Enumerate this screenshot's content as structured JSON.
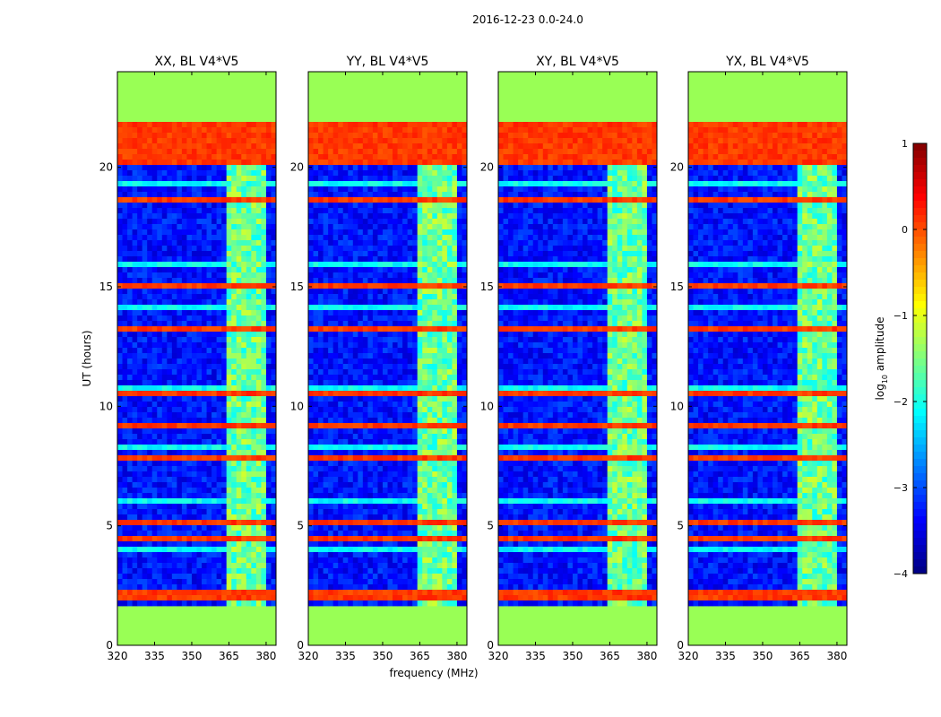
{
  "figure_title": "2016-12-23 0.0-24.0",
  "chart_data": {
    "type": "heatmap",
    "suptitle": "2016-12-23 0.0-24.0",
    "xlabel": "frequency (MHz)",
    "ylabel": "UT (hours)",
    "xlim": [
      320,
      384
    ],
    "ylim": [
      0,
      24
    ],
    "xticks": [
      320,
      335,
      350,
      365,
      380
    ],
    "yticks": [
      0,
      5,
      10,
      15,
      20
    ],
    "data_time_range_hours": [
      1.65,
      21.9
    ],
    "panels": [
      {
        "title": "XX, BL V4*V5"
      },
      {
        "title": "YY, BL V4*V5"
      },
      {
        "title": "XY, BL V4*V5"
      },
      {
        "title": "YX, BL V4*V5"
      }
    ],
    "colorbar": {
      "label": "log10 amplitude",
      "label_base": "log",
      "label_sub": "10",
      "label_rest": " amplitude",
      "range": [
        -4,
        1
      ],
      "ticks": [
        "1",
        "0",
        "−1",
        "−2",
        "−3",
        "−4"
      ],
      "colormap": "jet"
    },
    "rfi_band_mhz": [
      363.5,
      379.5
    ],
    "flagged_value_log10": -1.0,
    "flagged_color": "#99ff55",
    "background_level_log10": -3.3,
    "high_rows_hours": [
      20.2,
      20.5,
      20.8,
      21.1,
      21.4,
      21.7,
      18.7,
      15.0,
      13.2,
      10.5,
      9.2,
      7.8,
      5.2,
      4.4,
      2.1
    ],
    "cyan_rows_hours": [
      19.3,
      16.0,
      14.2,
      10.8,
      6.1,
      8.3,
      4.0
    ]
  }
}
